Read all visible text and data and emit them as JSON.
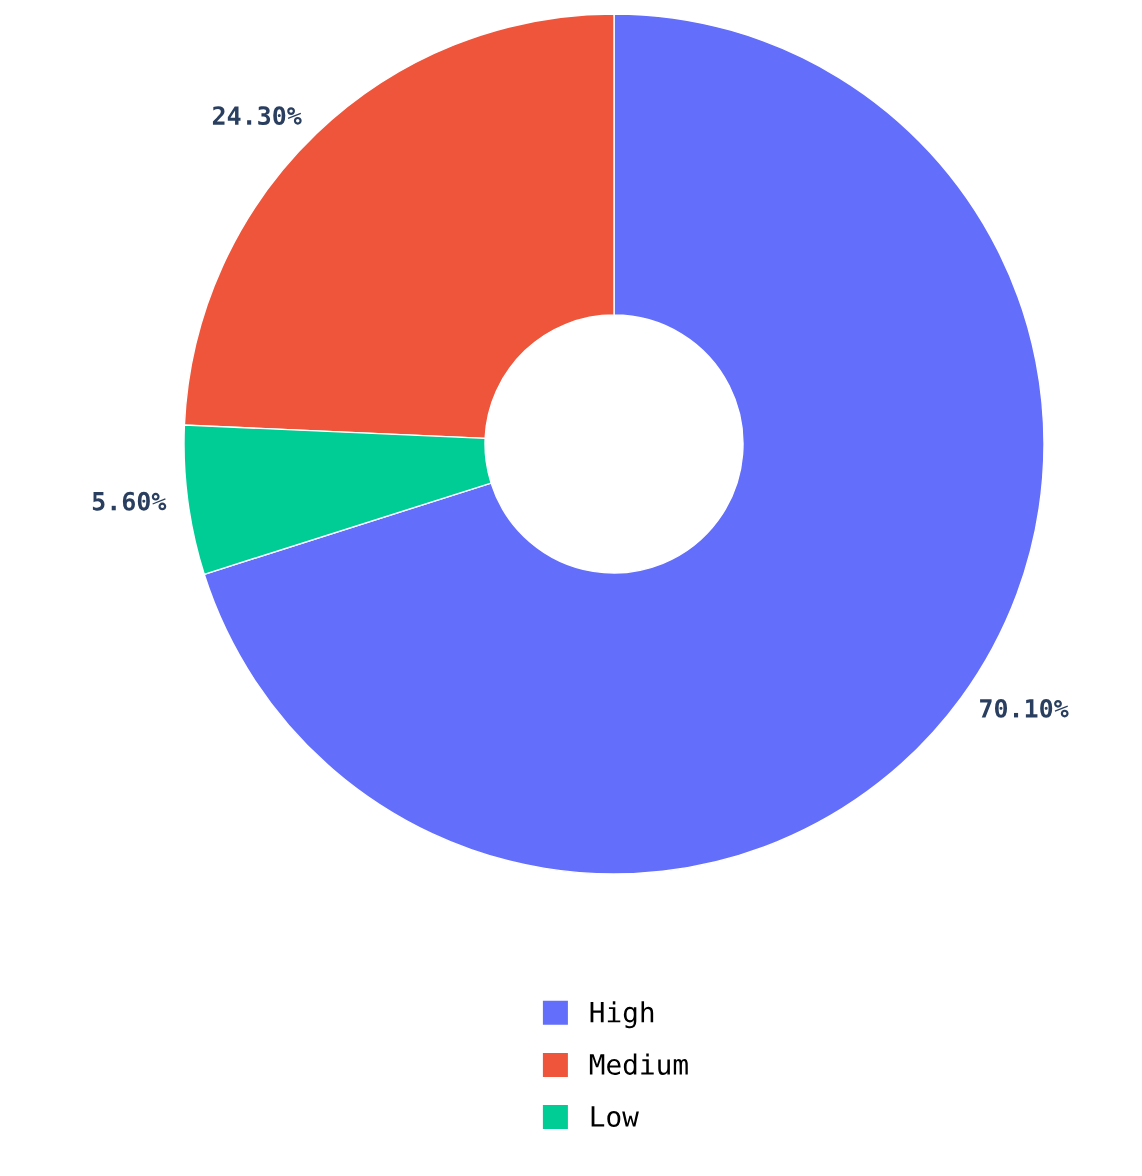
{
  "chart_data": {
    "type": "donut",
    "categories": [
      "High",
      "Medium",
      "Low"
    ],
    "values": [
      70.1,
      24.3,
      5.6
    ],
    "colors": [
      "#636efa",
      "#ef553b",
      "#00cc96"
    ],
    "value_labels": [
      "70.10%",
      "24.30%",
      "5.60%"
    ],
    "legend": "bottom"
  }
}
